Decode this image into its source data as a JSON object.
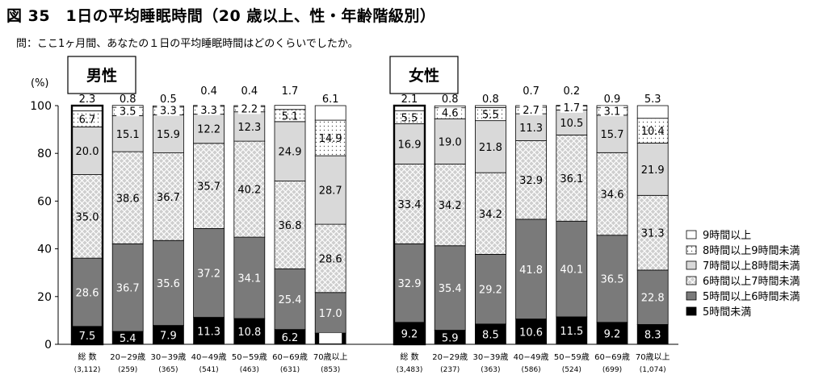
{
  "title": "図 35　1日の平均睡眠時間（20 歳以上、性・年齢階級別）",
  "question": "問：ここ1ヶ月間、あなたの１日の平均睡眠時間はどのくらいでしたか。",
  "chart_data": {
    "type": "bar",
    "stacked": true,
    "ylabel": "(%)",
    "ylim": [
      0,
      100
    ],
    "yticks": [
      "0",
      "20",
      "40",
      "60",
      "80",
      "100"
    ],
    "legend_position": "right",
    "series": [
      {
        "name": "5時間未満",
        "color": "#000000"
      },
      {
        "name": "5時間以上6時間未満",
        "color": "#7a7a7a"
      },
      {
        "name": "6時間以上7時間未満",
        "color": "#cfcfcf",
        "pattern": "diamond"
      },
      {
        "name": "7時間以上8時間未満",
        "color": "#d9d9d9"
      },
      {
        "name": "8時間以上9時間未満",
        "color": "#ffffff",
        "pattern": "dots"
      },
      {
        "name": "9時間以上",
        "color": "#ffffff"
      }
    ],
    "legend_order": [
      "9時間以上",
      "8時間以上9時間未満",
      "7時間以上8時間未満",
      "6時間以上7時間未満",
      "5時間以上6時間未満",
      "5時間未満"
    ],
    "groups": [
      {
        "label": "男性",
        "bars": [
          {
            "category": "総 数",
            "n": "(3,112)",
            "values": [
              7.5,
              28.6,
              35.0,
              20.0,
              6.7,
              2.3
            ]
          },
          {
            "category": "20−29歳",
            "n": "(259)",
            "values": [
              5.4,
              36.7,
              38.6,
              15.1,
              3.5,
              0.8
            ]
          },
          {
            "category": "30−39歳",
            "n": "(365)",
            "values": [
              7.9,
              35.6,
              36.7,
              15.9,
              3.3,
              0.5
            ]
          },
          {
            "category": "40−49歳",
            "n": "(541)",
            "values": [
              11.3,
              37.2,
              35.7,
              12.2,
              3.3,
              0.4
            ]
          },
          {
            "category": "50−59歳",
            "n": "(463)",
            "values": [
              10.8,
              34.1,
              40.2,
              12.3,
              2.2,
              0.4
            ]
          },
          {
            "category": "60−69歳",
            "n": "(631)",
            "values": [
              6.2,
              25.4,
              36.8,
              24.9,
              5.1,
              1.7
            ]
          },
          {
            "category": "70歳以上",
            "n": "(853)",
            "values": [
              4.7,
              17.0,
              28.6,
              28.7,
              14.9,
              6.1
            ]
          }
        ]
      },
      {
        "label": "女性",
        "bars": [
          {
            "category": "総 数",
            "n": "(3,483)",
            "values": [
              9.2,
              32.9,
              33.4,
              16.9,
              5.5,
              2.1
            ]
          },
          {
            "category": "20−29歳",
            "n": "(237)",
            "values": [
              5.9,
              35.4,
              34.2,
              19.0,
              4.6,
              0.8
            ]
          },
          {
            "category": "30−39歳",
            "n": "(363)",
            "values": [
              8.5,
              29.2,
              34.2,
              21.8,
              5.5,
              0.8
            ]
          },
          {
            "category": "40−49歳",
            "n": "(586)",
            "values": [
              10.6,
              41.8,
              32.9,
              11.3,
              2.7,
              0.7
            ]
          },
          {
            "category": "50−59歳",
            "n": "(524)",
            "values": [
              11.5,
              40.1,
              36.1,
              10.5,
              1.7,
              0.2
            ]
          },
          {
            "category": "60−69歳",
            "n": "(699)",
            "values": [
              9.2,
              36.5,
              34.6,
              15.7,
              3.1,
              0.9
            ]
          },
          {
            "category": "70歳以上",
            "n": "(1,074)",
            "values": [
              8.3,
              22.8,
              31.3,
              21.9,
              10.4,
              5.3
            ]
          }
        ]
      }
    ]
  }
}
